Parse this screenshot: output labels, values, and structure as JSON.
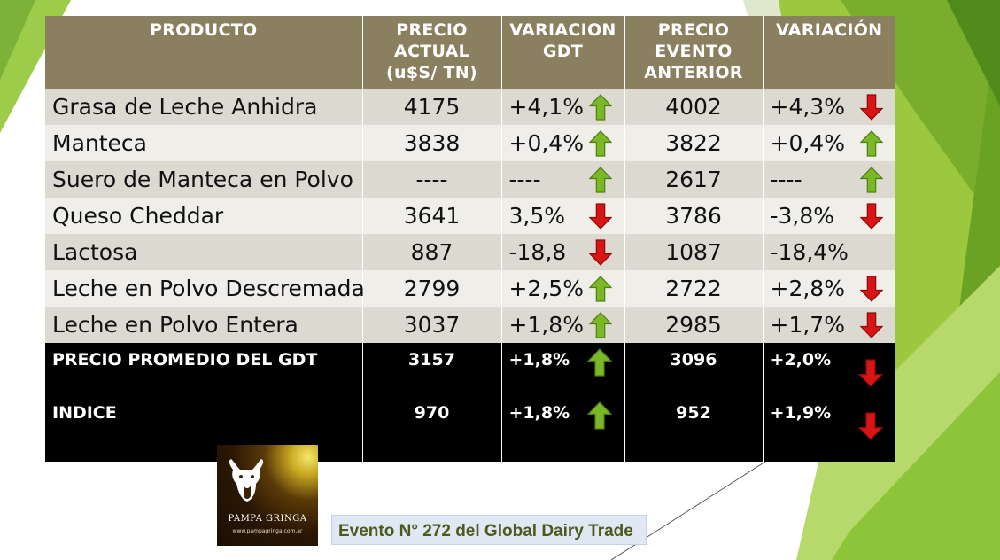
{
  "table": {
    "headers": [
      {
        "text": "PRODUCTO"
      },
      {
        "text": "PRECIO ACTUAL (u$S/ TN)"
      },
      {
        "text": "VARIACION GDT"
      },
      {
        "text": "PRECIO EVENTO ANTERIOR"
      },
      {
        "text": "VARIACIÓN"
      }
    ],
    "rows": [
      {
        "product": "Grasa de Leche Anhidra",
        "price": "4175",
        "var_gdt": "+4,1%",
        "var_gdt_arrow": "up-arrow-icon",
        "prev_price": "4002",
        "variation": "+4,3%",
        "variation_arrow": "down-arrow-icon"
      },
      {
        "product": "Manteca",
        "price": "3838",
        "var_gdt": "+0,4%",
        "var_gdt_arrow": "up-arrow-icon",
        "prev_price": "3822",
        "variation": "+0,4%",
        "variation_arrow": "up-arrow-icon"
      },
      {
        "product": "Suero de Manteca en Polvo",
        "price": "----",
        "var_gdt": "----",
        "var_gdt_arrow": "up-arrow-icon",
        "prev_price": "2617",
        "variation": "----",
        "variation_arrow": "up-arrow-icon"
      },
      {
        "product": "Queso Cheddar",
        "price": "3641",
        "var_gdt": "3,5%",
        "var_gdt_arrow": "down-arrow-icon",
        "prev_price": "3786",
        "variation": "-3,8%",
        "variation_arrow": "down-arrow-icon"
      },
      {
        "product": "Lactosa",
        "price": "887",
        "var_gdt": "-18,8",
        "var_gdt_arrow": "down-arrow-icon",
        "prev_price": "1087",
        "variation": "-18,4%",
        "variation_arrow": ""
      },
      {
        "product": "Leche en Polvo Descremada",
        "price": "2799",
        "var_gdt": "+2,5%",
        "var_gdt_arrow": "up-arrow-icon",
        "prev_price": "2722",
        "variation": "+2,8%",
        "variation_arrow": "down-arrow-icon"
      },
      {
        "product": "Leche en Polvo Entera",
        "price": "3037",
        "var_gdt": "+1,8%",
        "var_gdt_arrow": "up-arrow-icon",
        "prev_price": "2985",
        "variation": "+1,7%",
        "variation_arrow": "down-arrow-icon"
      }
    ],
    "summary": [
      {
        "label": "PRECIO PROMEDIO DEL GDT",
        "price": "3157",
        "var_gdt": "+1,8%",
        "var_gdt_arrow": "up-arrow-icon",
        "prev_price": "3096",
        "variation": "+2,0%",
        "variation_arrow": "down-arrow-icon"
      },
      {
        "label": "INDICE",
        "price": "970",
        "var_gdt": "+1,8%",
        "var_gdt_arrow": "up-arrow-icon",
        "prev_price": "952",
        "variation": "+1,9%",
        "variation_arrow": "down-arrow-icon"
      }
    ]
  },
  "logo": {
    "brand": "PAMPA GRINGA",
    "url": "www.pampagringa.com.ar"
  },
  "caption": "Evento N° 272 del Global Dairy Trade",
  "colors": {
    "header_bg": "#8a8060",
    "row_dark": "#dcdad0",
    "row_light": "#efeee9",
    "summary_bg": "#000000",
    "up_arrow": "#7ab827",
    "down_arrow": "#d81414",
    "caption_text": "#4b5a1f",
    "theme_green": "#8dc63f"
  }
}
